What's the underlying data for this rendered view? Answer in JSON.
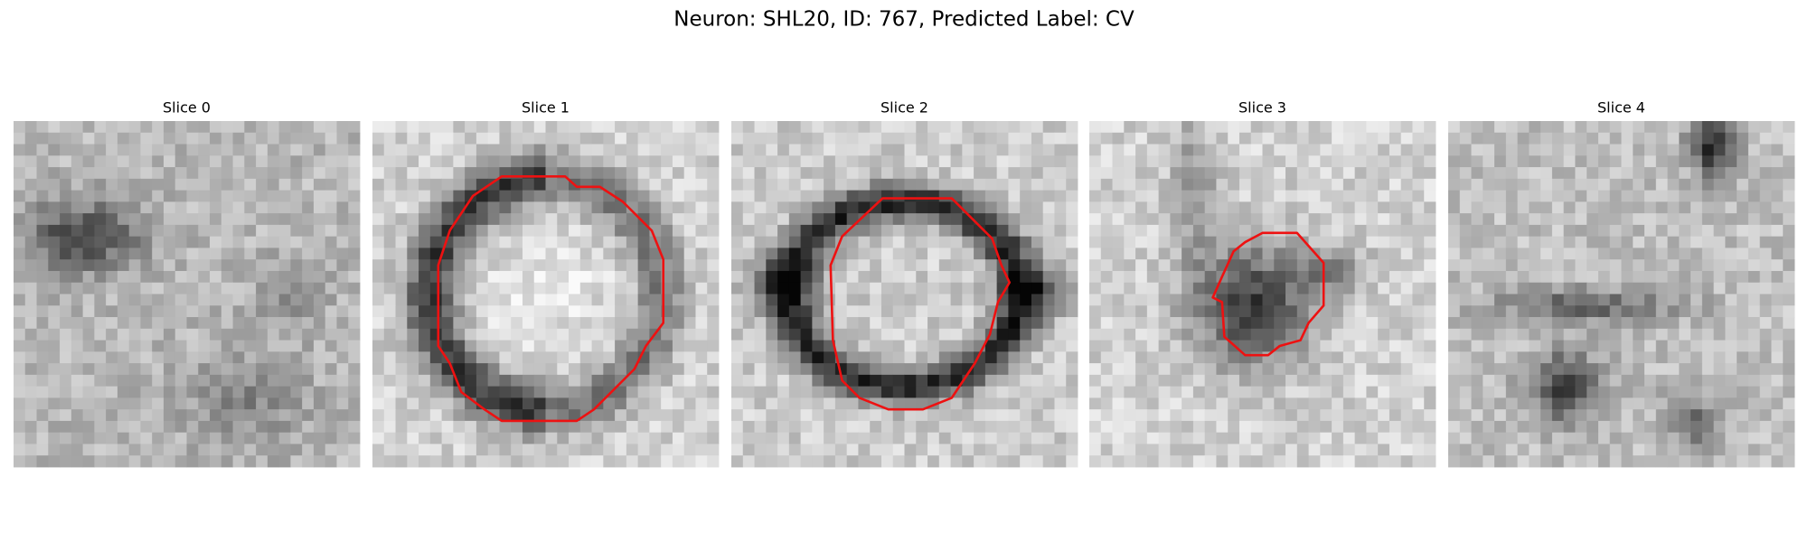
{
  "title": "Neuron: SHL20, ID: 767, Predicted Label: CV",
  "panels": [
    {
      "title": "Slice 0"
    },
    {
      "title": "Slice 1"
    },
    {
      "title": "Slice 2"
    },
    {
      "title": "Slice 3"
    },
    {
      "title": "Slice 4"
    }
  ]
}
